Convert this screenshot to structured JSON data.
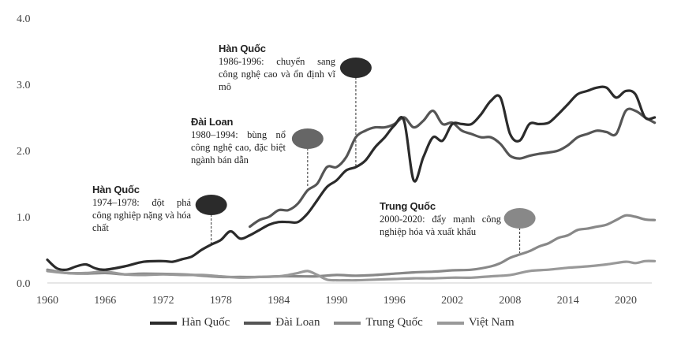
{
  "chart_data": {
    "type": "line",
    "title": "",
    "xlabel": "",
    "ylabel": "",
    "xlim": [
      1960,
      2022
    ],
    "ylim": [
      0,
      4.0
    ],
    "x_ticks": [
      "1960",
      "1966",
      "1972",
      "1978",
      "1984",
      "1990",
      "1996",
      "2002",
      "2008",
      "2014",
      "2020"
    ],
    "y_ticks": [
      "0.0",
      "1.0",
      "2.0",
      "3.0",
      "4.0"
    ],
    "grid": false,
    "legend_position": "bottom",
    "series": [
      {
        "name": "Hàn Quốc",
        "color": "#2b2b2b",
        "points": [
          [
            1960,
            0.35
          ],
          [
            1961,
            0.22
          ],
          [
            1962,
            0.2
          ],
          [
            1963,
            0.25
          ],
          [
            1964,
            0.28
          ],
          [
            1965,
            0.22
          ],
          [
            1966,
            0.2
          ],
          [
            1968,
            0.25
          ],
          [
            1970,
            0.32
          ],
          [
            1972,
            0.33
          ],
          [
            1973,
            0.32
          ],
          [
            1974,
            0.36
          ],
          [
            1975,
            0.4
          ],
          [
            1976,
            0.5
          ],
          [
            1977,
            0.58
          ],
          [
            1978,
            0.65
          ],
          [
            1979,
            0.78
          ],
          [
            1980,
            0.67
          ],
          [
            1981,
            0.72
          ],
          [
            1982,
            0.8
          ],
          [
            1983,
            0.88
          ],
          [
            1984,
            0.92
          ],
          [
            1985,
            0.92
          ],
          [
            1986,
            0.92
          ],
          [
            1987,
            1.05
          ],
          [
            1988,
            1.25
          ],
          [
            1989,
            1.45
          ],
          [
            1990,
            1.55
          ],
          [
            1991,
            1.7
          ],
          [
            1992,
            1.75
          ],
          [
            1993,
            1.85
          ],
          [
            1994,
            2.05
          ],
          [
            1995,
            2.2
          ],
          [
            1996,
            2.38
          ],
          [
            1997,
            2.45
          ],
          [
            1998,
            1.55
          ],
          [
            1999,
            1.9
          ],
          [
            2000,
            2.2
          ],
          [
            2001,
            2.15
          ],
          [
            2002,
            2.4
          ],
          [
            2003,
            2.4
          ],
          [
            2004,
            2.4
          ],
          [
            2005,
            2.55
          ],
          [
            2006,
            2.75
          ],
          [
            2007,
            2.8
          ],
          [
            2008,
            2.25
          ],
          [
            2009,
            2.15
          ],
          [
            2010,
            2.4
          ],
          [
            2011,
            2.4
          ],
          [
            2012,
            2.42
          ],
          [
            2013,
            2.55
          ],
          [
            2014,
            2.7
          ],
          [
            2015,
            2.85
          ],
          [
            2016,
            2.9
          ],
          [
            2017,
            2.95
          ],
          [
            2018,
            2.95
          ],
          [
            2019,
            2.8
          ],
          [
            2020,
            2.9
          ],
          [
            2021,
            2.85
          ],
          [
            2022,
            2.5
          ],
          [
            2023,
            2.5
          ]
        ]
      },
      {
        "name": "Đài Loan",
        "color": "#555555",
        "points": [
          [
            1981,
            0.85
          ],
          [
            1982,
            0.95
          ],
          [
            1983,
            1.0
          ],
          [
            1984,
            1.1
          ],
          [
            1985,
            1.1
          ],
          [
            1986,
            1.2
          ],
          [
            1987,
            1.4
          ],
          [
            1988,
            1.5
          ],
          [
            1989,
            1.75
          ],
          [
            1990,
            1.75
          ],
          [
            1991,
            1.9
          ],
          [
            1992,
            2.2
          ],
          [
            1993,
            2.3
          ],
          [
            1994,
            2.35
          ],
          [
            1995,
            2.35
          ],
          [
            1996,
            2.4
          ],
          [
            1997,
            2.5
          ],
          [
            1998,
            2.35
          ],
          [
            1999,
            2.45
          ],
          [
            2000,
            2.6
          ],
          [
            2001,
            2.4
          ],
          [
            2002,
            2.42
          ],
          [
            2003,
            2.3
          ],
          [
            2004,
            2.25
          ],
          [
            2005,
            2.2
          ],
          [
            2006,
            2.2
          ],
          [
            2007,
            2.1
          ],
          [
            2008,
            1.92
          ],
          [
            2009,
            1.88
          ],
          [
            2010,
            1.92
          ],
          [
            2011,
            1.95
          ],
          [
            2012,
            1.97
          ],
          [
            2013,
            2.0
          ],
          [
            2014,
            2.08
          ],
          [
            2015,
            2.2
          ],
          [
            2016,
            2.25
          ],
          [
            2017,
            2.3
          ],
          [
            2018,
            2.28
          ],
          [
            2019,
            2.25
          ],
          [
            2020,
            2.6
          ],
          [
            2021,
            2.6
          ],
          [
            2022,
            2.5
          ],
          [
            2023,
            2.42
          ]
        ]
      },
      {
        "name": "Trung Quốc",
        "color": "#888888",
        "points": [
          [
            1960,
            0.2
          ],
          [
            1962,
            0.15
          ],
          [
            1964,
            0.14
          ],
          [
            1966,
            0.15
          ],
          [
            1968,
            0.13
          ],
          [
            1970,
            0.14
          ],
          [
            1974,
            0.13
          ],
          [
            1976,
            0.11
          ],
          [
            1978,
            0.09
          ],
          [
            1980,
            0.09
          ],
          [
            1982,
            0.09
          ],
          [
            1984,
            0.1
          ],
          [
            1986,
            0.1
          ],
          [
            1988,
            0.1
          ],
          [
            1990,
            0.12
          ],
          [
            1992,
            0.11
          ],
          [
            1994,
            0.12
          ],
          [
            1996,
            0.14
          ],
          [
            1998,
            0.16
          ],
          [
            2000,
            0.17
          ],
          [
            2002,
            0.19
          ],
          [
            2004,
            0.2
          ],
          [
            2006,
            0.25
          ],
          [
            2007,
            0.3
          ],
          [
            2008,
            0.38
          ],
          [
            2009,
            0.43
          ],
          [
            2010,
            0.48
          ],
          [
            2011,
            0.55
          ],
          [
            2012,
            0.6
          ],
          [
            2013,
            0.68
          ],
          [
            2014,
            0.72
          ],
          [
            2015,
            0.8
          ],
          [
            2016,
            0.82
          ],
          [
            2017,
            0.85
          ],
          [
            2018,
            0.88
          ],
          [
            2019,
            0.95
          ],
          [
            2020,
            1.02
          ],
          [
            2021,
            1.0
          ],
          [
            2022,
            0.96
          ],
          [
            2023,
            0.95
          ]
        ]
      },
      {
        "name": "Việt Nam",
        "color": "#999999",
        "points": [
          [
            1960,
            0.18
          ],
          [
            1962,
            0.15
          ],
          [
            1964,
            0.15
          ],
          [
            1966,
            0.17
          ],
          [
            1968,
            0.13
          ],
          [
            1970,
            0.12
          ],
          [
            1972,
            0.13
          ],
          [
            1974,
            0.12
          ],
          [
            1976,
            0.12
          ],
          [
            1978,
            0.1
          ],
          [
            1980,
            0.08
          ],
          [
            1982,
            0.09
          ],
          [
            1984,
            0.1
          ],
          [
            1985,
            0.12
          ],
          [
            1986,
            0.15
          ],
          [
            1987,
            0.18
          ],
          [
            1988,
            0.12
          ],
          [
            1989,
            0.05
          ],
          [
            1990,
            0.04
          ],
          [
            1991,
            0.04
          ],
          [
            1992,
            0.04
          ],
          [
            1994,
            0.05
          ],
          [
            1996,
            0.06
          ],
          [
            1998,
            0.07
          ],
          [
            2000,
            0.07
          ],
          [
            2002,
            0.08
          ],
          [
            2004,
            0.08
          ],
          [
            2006,
            0.1
          ],
          [
            2008,
            0.12
          ],
          [
            2010,
            0.18
          ],
          [
            2012,
            0.2
          ],
          [
            2014,
            0.23
          ],
          [
            2016,
            0.25
          ],
          [
            2018,
            0.28
          ],
          [
            2020,
            0.32
          ],
          [
            2021,
            0.3
          ],
          [
            2022,
            0.33
          ],
          [
            2023,
            0.33
          ]
        ]
      }
    ]
  },
  "annotations": [
    {
      "title": "Hàn Quốc",
      "text": "1974–1978: đột phá công nghiệp nặng và hóa chất",
      "year": 1977,
      "value": 0.58,
      "color": "#2b2b2b"
    },
    {
      "title": "Đài Loan",
      "text": "1980–1994: bùng nổ công nghệ cao, đặc biệt ngành bán dẫn",
      "year": 1987,
      "value": 1.45,
      "color": "#666666"
    },
    {
      "title": "Hàn Quốc",
      "text": "1986-1996: chuyển sang công nghệ cao và ổn định vĩ mô",
      "year": 1992,
      "value": 1.75,
      "color": "#2b2b2b"
    },
    {
      "title": "Trung Quốc",
      "text": "2000-2020: đẩy mạnh công nghiệp hóa và xuất khẩu",
      "year": 2009,
      "value": 0.45,
      "color": "#888888"
    }
  ]
}
